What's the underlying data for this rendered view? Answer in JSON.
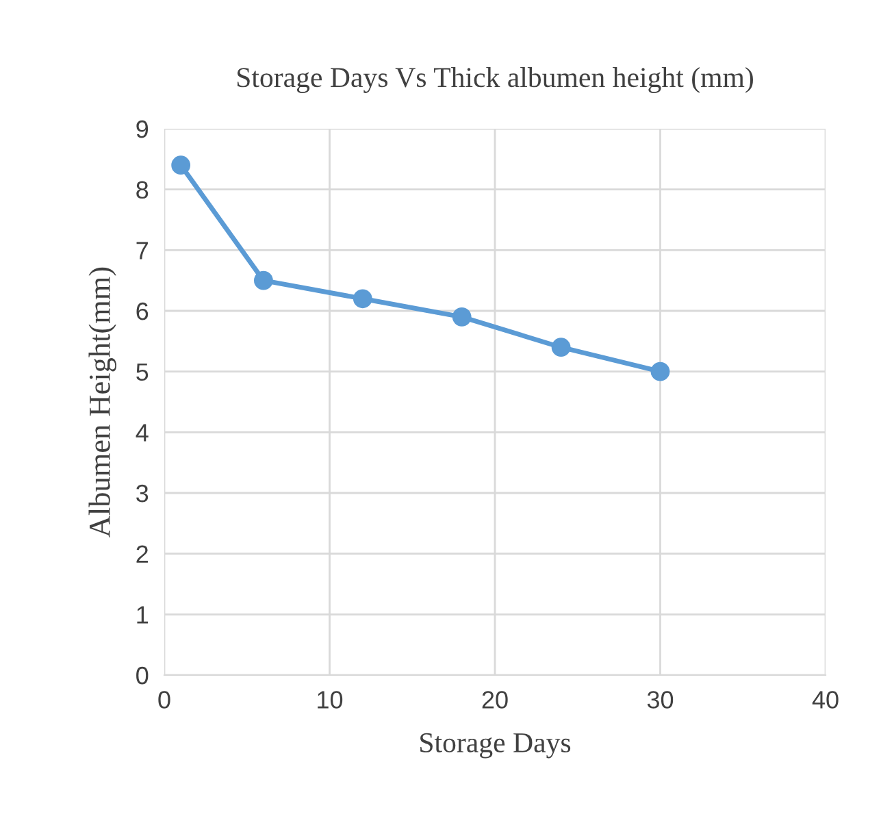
{
  "chart_data": {
    "type": "line",
    "title": "Storage Days Vs Thick albumen height (mm)",
    "xlabel": "Storage Days",
    "ylabel": "Albumen Height(mm)",
    "x": [
      1,
      6,
      12,
      18,
      24,
      30
    ],
    "series": [
      {
        "color": "#5b9bd5",
        "values": [
          8.4,
          6.5,
          6.2,
          5.9,
          5.4,
          5.0
        ]
      }
    ],
    "xlim": [
      0,
      40
    ],
    "xticks": [
      0,
      10,
      20,
      30,
      40
    ],
    "ylim": [
      0,
      9
    ],
    "yticks": [
      0,
      1,
      2,
      3,
      4,
      5,
      6,
      7,
      8,
      9
    ],
    "grid": true,
    "marker": "circle",
    "line_style": "solid"
  }
}
